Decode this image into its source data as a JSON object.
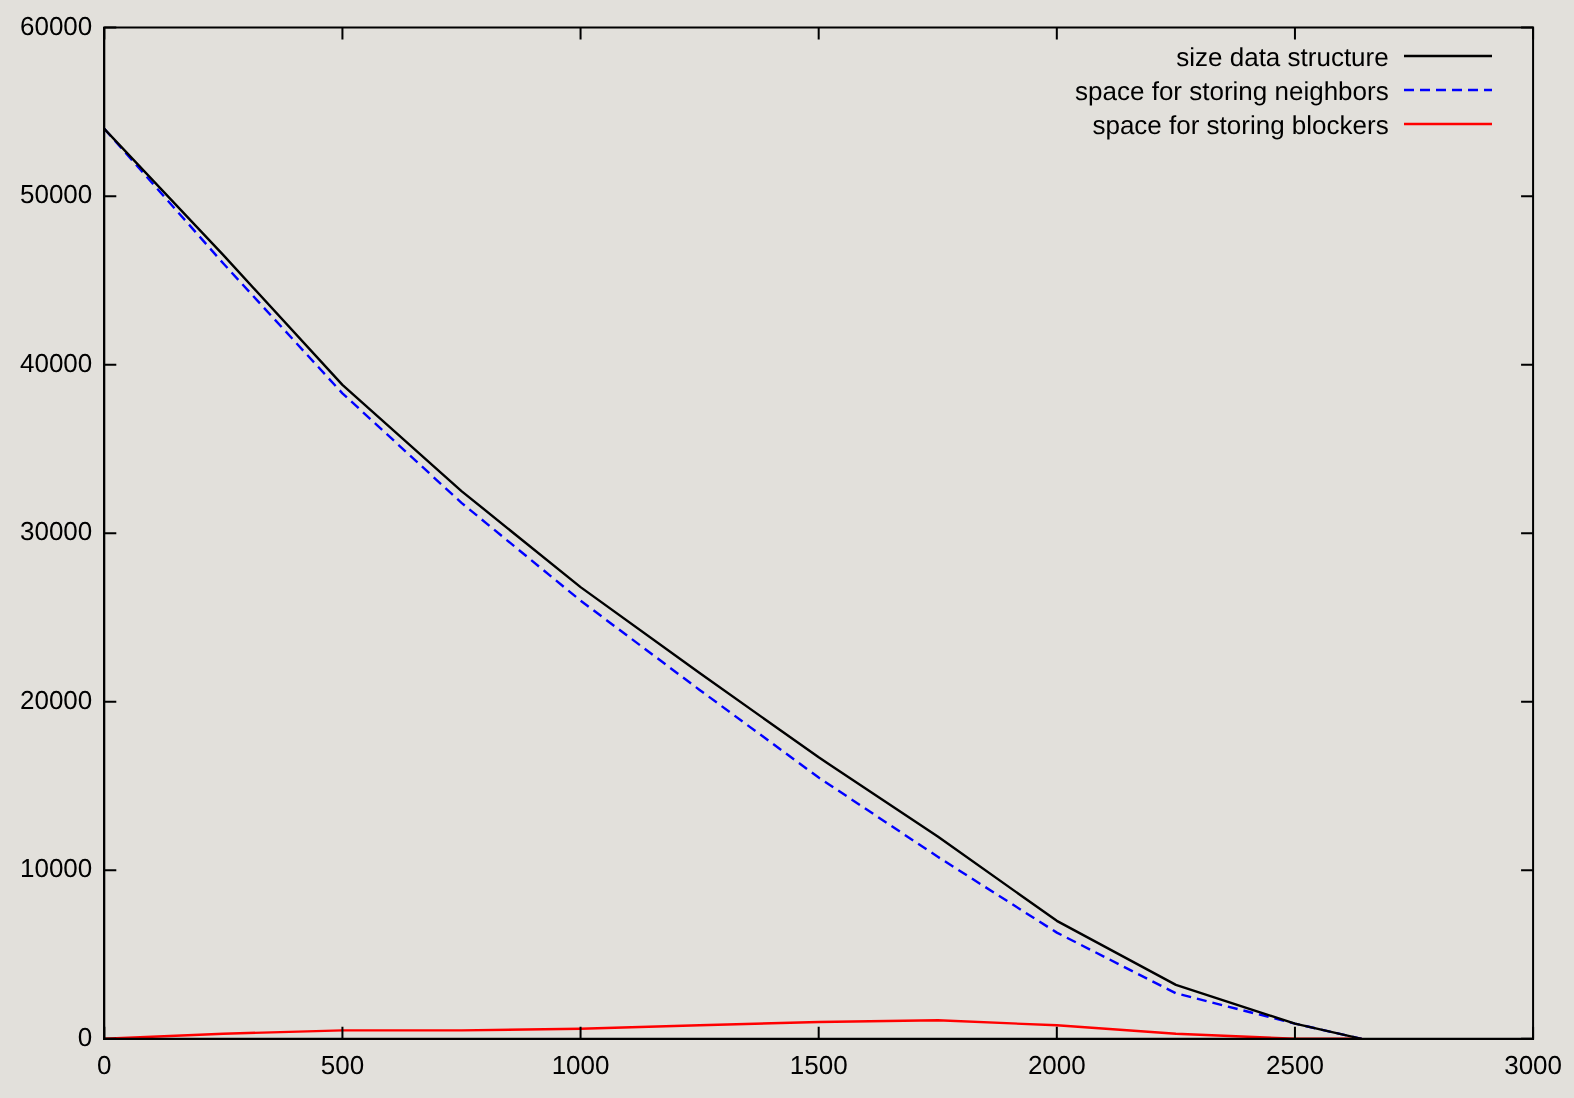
{
  "chart_data": {
    "type": "line",
    "xlim": [
      0,
      3000
    ],
    "xticks": [
      0,
      500,
      1000,
      1500,
      2000,
      2500,
      3000
    ],
    "ylim": [
      0,
      60000
    ],
    "yticks": [
      0,
      10000,
      20000,
      30000,
      40000,
      50000,
      60000
    ],
    "grid": false,
    "legend": "top right",
    "marker": "none",
    "series": [
      {
        "name": "size data structure",
        "color": "#000000",
        "line_style": "solid",
        "x": [
          0,
          250,
          500,
          750,
          1000,
          1250,
          1500,
          1750,
          2000,
          2250,
          2500,
          2640
        ],
        "values": [
          54000,
          46500,
          38800,
          32500,
          26800,
          21700,
          16700,
          12000,
          7000,
          3200,
          900,
          0
        ]
      },
      {
        "name": "space for storing neighbors",
        "color": "#0000ff",
        "line_style": "dashed",
        "x": [
          0,
          250,
          500,
          750,
          1000,
          1250,
          1500,
          1750,
          2000,
          2250,
          2500,
          2640
        ],
        "values": [
          54000,
          46000,
          38300,
          31800,
          26000,
          20700,
          15500,
          10800,
          6300,
          2700,
          900,
          0
        ]
      },
      {
        "name": "space for storing blockers",
        "color": "#ff0000",
        "line_style": "solid",
        "x": [
          0,
          250,
          500,
          750,
          1000,
          1250,
          1500,
          1750,
          2000,
          2250,
          2500,
          2640
        ],
        "values": [
          0,
          300,
          500,
          500,
          600,
          800,
          1000,
          1100,
          800,
          300,
          0,
          0
        ]
      }
    ]
  }
}
